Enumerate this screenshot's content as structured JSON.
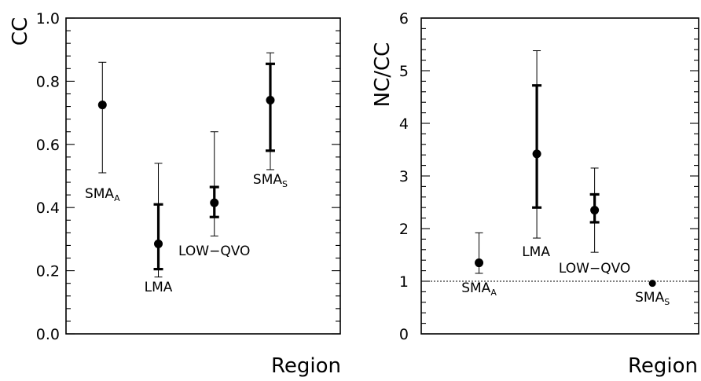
{
  "chart_data": [
    {
      "type": "scatter",
      "ylabel": "CC",
      "xlabel": "Region",
      "ylim": [
        0.0,
        1.0
      ],
      "yticks": [
        "0.0",
        "0.2",
        "0.4",
        "0.6",
        "0.8",
        "1.0"
      ],
      "points": [
        {
          "label": "SMA",
          "sub": "A",
          "x": 1,
          "y": 0.725,
          "outer": [
            0.51,
            0.86
          ],
          "inner": null,
          "label_pos": "below-left"
        },
        {
          "label": "LMA",
          "sub": "",
          "x": 2,
          "y": 0.285,
          "outer": [
            0.18,
            0.54
          ],
          "inner": [
            0.205,
            0.41
          ],
          "label_pos": "below"
        },
        {
          "label": "LOW−QVO",
          "sub": "",
          "x": 3,
          "y": 0.415,
          "outer": [
            0.31,
            0.64
          ],
          "inner": [
            0.37,
            0.465
          ],
          "label_pos": "below"
        },
        {
          "label": "SMA",
          "sub": "S",
          "x": 4,
          "y": 0.74,
          "outer": [
            0.52,
            0.89
          ],
          "inner": [
            0.58,
            0.855
          ],
          "label_pos": "below"
        }
      ]
    },
    {
      "type": "scatter",
      "ylabel": "NC/CC",
      "xlabel": "Region",
      "ylim": [
        0,
        6
      ],
      "yticks": [
        "0",
        "1",
        "2",
        "3",
        "4",
        "5",
        "6"
      ],
      "reference_line": 1,
      "points": [
        {
          "label": "SMA",
          "sub": "A",
          "x": 1,
          "y": 1.35,
          "outer": [
            1.15,
            1.92
          ],
          "inner": null,
          "label_pos": "below"
        },
        {
          "label": "LMA",
          "sub": "",
          "x": 2,
          "y": 3.42,
          "outer": [
            1.82,
            5.38
          ],
          "inner": [
            2.4,
            4.72
          ],
          "label_pos": "below-left"
        },
        {
          "label": "LOW−QVO",
          "sub": "",
          "x": 3,
          "y": 2.35,
          "outer": [
            1.55,
            3.15
          ],
          "inner": [
            2.12,
            2.65
          ],
          "label_pos": "below"
        },
        {
          "label": "SMA",
          "sub": "S",
          "x": 4,
          "y": 0.96,
          "outer": null,
          "inner": null,
          "label_pos": "below"
        }
      ]
    }
  ]
}
